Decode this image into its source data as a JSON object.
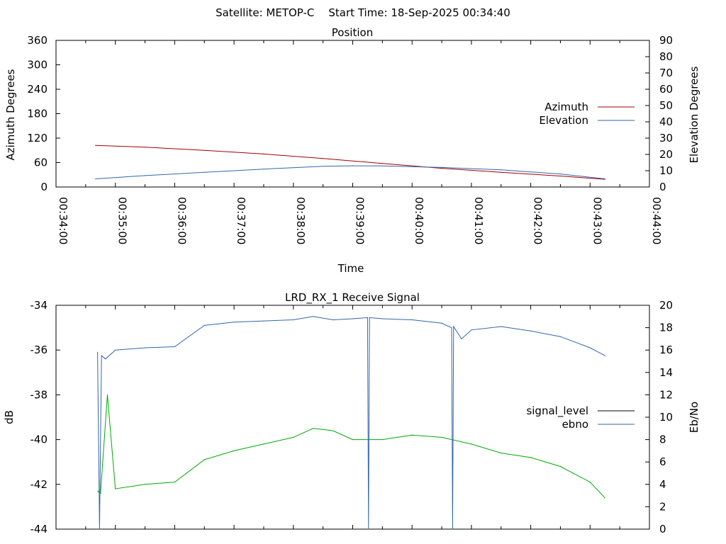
{
  "header": {
    "satellite": "Satellite: METOP-C",
    "start_time": "Start Time: 18-Sep-2025 00:34:40"
  },
  "colors": {
    "azimuth": "#a00000",
    "elevation": "#3366aa",
    "signal_level": "#000000",
    "ebno": "#3366aa",
    "green_trace": "#00aa00"
  },
  "chart_data": [
    {
      "type": "line",
      "title": "Position",
      "xlabel": "Time",
      "ylabel": "Azimuth Degrees",
      "y2label": "Elevation Degrees",
      "xlim": [
        "00:34:00",
        "00:44:00"
      ],
      "xticks": [
        "00:34:00",
        "00:35:00",
        "00:36:00",
        "00:37:00",
        "00:38:00",
        "00:39:00",
        "00:40:00",
        "00:41:00",
        "00:42:00",
        "00:43:00",
        "00:44:00"
      ],
      "ylim": [
        0,
        360
      ],
      "yticks": [
        0,
        60,
        120,
        180,
        240,
        300,
        360
      ],
      "y2lim": [
        0,
        90
      ],
      "y2ticks": [
        0,
        10,
        20,
        30,
        40,
        50,
        60,
        70,
        80,
        90
      ],
      "legend_position": "right",
      "series": [
        {
          "name": "Azimuth",
          "axis": "y",
          "x": [
            "00:34:40",
            "00:35:30",
            "00:36:30",
            "00:37:30",
            "00:38:30",
            "00:39:30",
            "00:40:30",
            "00:41:30",
            "00:42:30",
            "00:43:15"
          ],
          "values": [
            102,
            98,
            90,
            81,
            70,
            58,
            46,
            36,
            27,
            19
          ]
        },
        {
          "name": "Elevation",
          "axis": "y2",
          "x": [
            "00:34:40",
            "00:35:30",
            "00:36:30",
            "00:37:30",
            "00:38:30",
            "00:39:00",
            "00:39:30",
            "00:40:30",
            "00:41:30",
            "00:42:30",
            "00:43:15"
          ],
          "values": [
            5,
            7,
            9,
            11,
            12.7,
            13,
            12.9,
            12,
            10.5,
            8,
            5
          ]
        }
      ]
    },
    {
      "type": "line",
      "title": "LRD_RX_1 Receive Signal",
      "ylabel": "dB",
      "y2label": "Eb/No",
      "xlim": [
        "00:34:00",
        "00:44:00"
      ],
      "ylim": [
        -44,
        -34
      ],
      "yticks": [
        -44,
        -42,
        -40,
        -38,
        -36,
        -34
      ],
      "y2lim": [
        0,
        20
      ],
      "y2ticks": [
        0,
        2,
        4,
        6,
        8,
        10,
        12,
        14,
        16,
        18,
        20
      ],
      "legend_position": "right",
      "series": [
        {
          "name": "signal_level",
          "axis": "y",
          "x": [
            "00:34:42",
            "00:34:45",
            "00:34:52",
            "00:35:00",
            "00:35:30",
            "00:36:00",
            "00:36:30",
            "00:37:00",
            "00:37:30",
            "00:38:00",
            "00:38:20",
            "00:38:40",
            "00:39:00",
            "00:39:30",
            "00:39:45",
            "00:40:00",
            "00:40:30",
            "00:41:00",
            "00:41:30",
            "00:42:00",
            "00:42:30",
            "00:43:00",
            "00:43:15"
          ],
          "values": [
            -42.3,
            -42.4,
            -38.0,
            -42.2,
            -42.0,
            -41.9,
            -40.9,
            -40.5,
            -40.2,
            -39.9,
            -39.5,
            -39.6,
            -40.0,
            -40.0,
            -39.9,
            -39.8,
            -39.9,
            -40.2,
            -40.6,
            -40.8,
            -41.2,
            -41.9,
            -42.6
          ]
        },
        {
          "name": "ebno",
          "axis": "y2",
          "x": [
            "00:34:42",
            "00:34:44",
            "00:34:46",
            "00:34:50",
            "00:35:00",
            "00:35:30",
            "00:36:00",
            "00:36:30",
            "00:37:00",
            "00:37:30",
            "00:38:00",
            "00:38:20",
            "00:38:40",
            "00:39:00",
            "00:39:15",
            "00:39:16",
            "00:39:17",
            "00:39:30",
            "00:40:00",
            "00:40:30",
            "00:40:40",
            "00:40:41",
            "00:40:42",
            "00:40:50",
            "00:41:00",
            "00:41:30",
            "00:42:00",
            "00:42:30",
            "00:43:00",
            "00:43:15"
          ],
          "values": [
            15.8,
            0,
            15.5,
            15.2,
            16.0,
            16.2,
            16.3,
            18.2,
            18.5,
            18.6,
            18.7,
            19.0,
            18.7,
            18.8,
            18.9,
            0,
            18.9,
            18.8,
            18.7,
            18.4,
            18.0,
            0,
            18.1,
            17.0,
            17.8,
            18.1,
            17.7,
            17.2,
            16.2,
            15.5
          ]
        }
      ]
    }
  ]
}
